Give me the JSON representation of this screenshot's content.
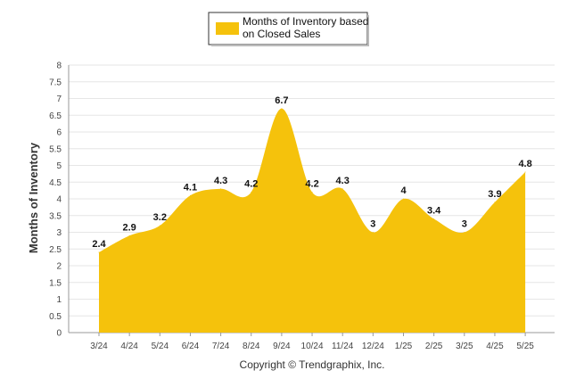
{
  "chart_data": {
    "type": "area",
    "categories": [
      "3/24",
      "4/24",
      "5/24",
      "6/24",
      "7/24",
      "8/24",
      "9/24",
      "10/24",
      "11/24",
      "12/24",
      "1/25",
      "2/25",
      "3/25",
      "4/25",
      "5/25"
    ],
    "series": [
      {
        "name": "Months of Inventory based on Closed Sales",
        "values": [
          2.4,
          2.9,
          3.2,
          4.1,
          4.3,
          4.2,
          6.7,
          4.2,
          4.3,
          3,
          4,
          3.4,
          3,
          3.9,
          4.8
        ],
        "labels": [
          "2.4",
          "2.9",
          "3.2",
          "4.1",
          "4.3",
          "4.2",
          "6.7",
          "4.2",
          "4.3",
          "3",
          "4",
          "3.4",
          "3",
          "3.9",
          "4.8"
        ],
        "color": "#F5C20C"
      }
    ],
    "ylabel": "Months of Inventory",
    "ylim": [
      0,
      8
    ],
    "yticks": [
      "0",
      "0.5",
      "1",
      "1.5",
      "2",
      "2.5",
      "3",
      "3.5",
      "4",
      "4.5",
      "5",
      "5.5",
      "6",
      "6.5",
      "7",
      "7.5",
      "8"
    ],
    "grid": true,
    "legend": "top-center",
    "legend_lines": [
      "Months of Inventory based",
      "on Closed Sales"
    ],
    "credit": "Copyright © Trendgraphix, Inc."
  }
}
